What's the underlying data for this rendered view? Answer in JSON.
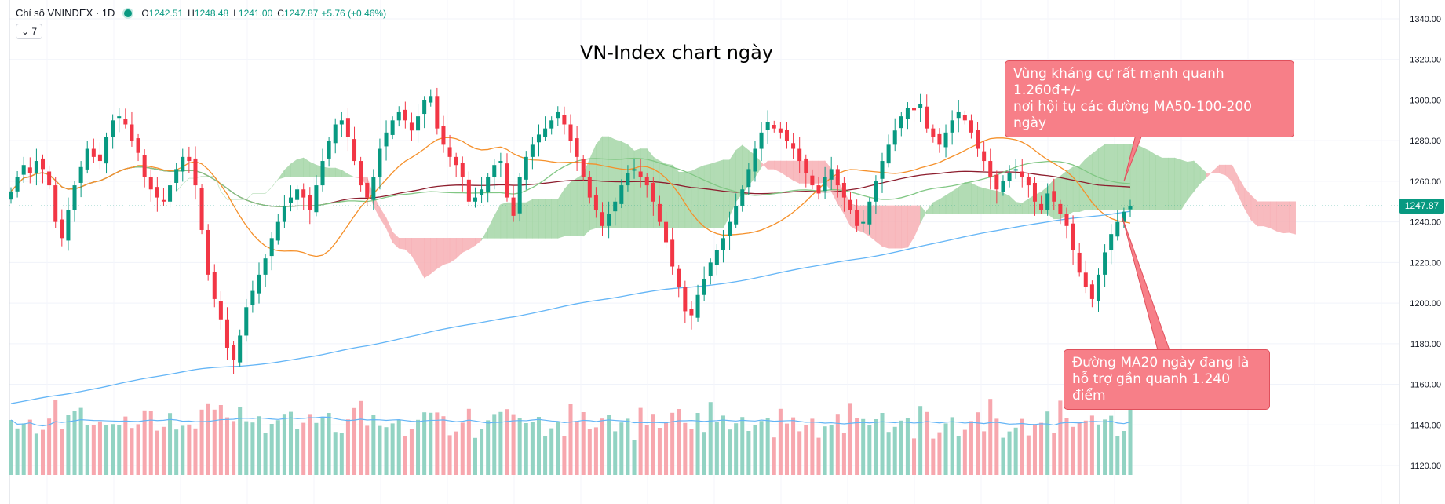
{
  "legend": {
    "symbol": "Chỉ số VNINDEX · 1D",
    "open_label": "O",
    "open": "1242.51",
    "high_label": "H",
    "high": "1248.48",
    "low_label": "L",
    "low": "1241.00",
    "close_label": "C",
    "close": "1247.87",
    "change": "+5.76 (+0.46%)"
  },
  "interval_toggle": "⌄ 7",
  "current_price_tag": "1247.87",
  "colors": {
    "up": "#089981",
    "down": "#f23645",
    "cloud_bull": "#a5d6a7",
    "cloud_bear": "#f7b0b5",
    "ma20": "#f5902a",
    "ma50": "#81c784",
    "ma100": "#8d1e2e",
    "ma200": "#64b5f6",
    "volume_up": "#92d3c3",
    "volume_down": "#f7a7ae"
  },
  "chart_data": {
    "type": "candlestick",
    "title": "VN-Index chart ngày",
    "interval": "1D",
    "y_axis": {
      "min": 1110,
      "max": 1345,
      "ticks": [
        1120,
        1140,
        1160,
        1180,
        1200,
        1220,
        1240,
        1260,
        1280,
        1300,
        1320,
        1340
      ],
      "tick_labels": [
        "1120.00",
        "1140.00",
        "1160.00",
        "1180.00",
        "1200.00",
        "1220.00",
        "1240.00",
        "1260.00",
        "1280.00",
        "1300.00",
        "1320.00",
        "1340.00"
      ]
    },
    "reference_levels": {
      "last_close": 1247.87,
      "resistance_zone": 1260,
      "ma20_support": 1240
    },
    "close_series": [
      1255,
      1262,
      1268,
      1264,
      1270,
      1266,
      1258,
      1240,
      1232,
      1246,
      1258,
      1267,
      1276,
      1272,
      1270,
      1282,
      1290,
      1292,
      1288,
      1280,
      1274,
      1262,
      1256,
      1252,
      1250,
      1258,
      1266,
      1272,
      1270,
      1258,
      1236,
      1214,
      1202,
      1192,
      1178,
      1172,
      1184,
      1198,
      1206,
      1214,
      1222,
      1232,
      1240,
      1248,
      1252,
      1256,
      1252,
      1246,
      1258,
      1270,
      1280,
      1288,
      1290,
      1282,
      1270,
      1258,
      1252,
      1262,
      1276,
      1284,
      1290,
      1294,
      1290,
      1285,
      1292,
      1300,
      1302,
      1286,
      1278,
      1272,
      1268,
      1262,
      1250,
      1252,
      1256,
      1262,
      1268,
      1270,
      1252,
      1243,
      1262,
      1272,
      1278,
      1283,
      1286,
      1290,
      1294,
      1288,
      1280,
      1272,
      1262,
      1252,
      1246,
      1238,
      1244,
      1250,
      1258,
      1264,
      1266,
      1262,
      1258,
      1250,
      1240,
      1230,
      1218,
      1208,
      1196,
      1194,
      1204,
      1212,
      1220,
      1226,
      1232,
      1240,
      1248,
      1256,
      1266,
      1276,
      1284,
      1289,
      1286,
      1284,
      1280,
      1276,
      1270,
      1264,
      1258,
      1254,
      1262,
      1266,
      1258,
      1252,
      1246,
      1238,
      1240,
      1250,
      1260,
      1270,
      1278,
      1285,
      1292,
      1296,
      1295,
      1298,
      1286,
      1282,
      1278,
      1284,
      1290,
      1294,
      1290,
      1284,
      1276,
      1270,
      1262,
      1256,
      1260,
      1264,
      1266,
      1262,
      1258,
      1250,
      1246,
      1254,
      1250,
      1244,
      1238,
      1226,
      1215,
      1208,
      1202,
      1214,
      1225,
      1234,
      1240,
      1245,
      1247.87
    ],
    "ma_lengths": [
      20,
      50,
      100,
      200
    ],
    "ichimoku": true,
    "volume_panel": true
  },
  "annotations": [
    {
      "text_line1": "Vùng kháng cự rất mạnh quanh 1.260đ+/-",
      "text_line2": "nơi hội tụ các đường MA50-100-200 ngày"
    },
    {
      "text_line1": "Đường MA20 ngày đang là",
      "text_line2": "hỗ trợ gần quanh 1.240 điểm"
    }
  ]
}
